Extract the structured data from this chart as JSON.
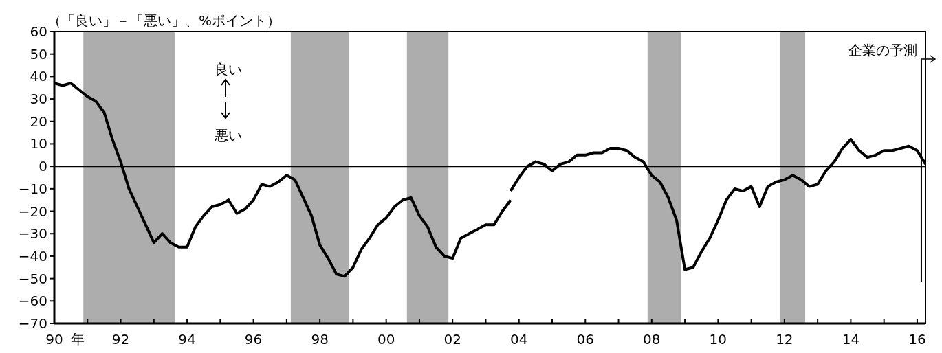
{
  "chart_data": {
    "type": "line",
    "ylabel": "（「良い」－「悪い」、%ポイント）",
    "annotations": [
      "良い",
      "悪い",
      "年"
    ],
    "series": [
      {
        "color": "#000000",
        "x": [
          1990,
          1990.25,
          1990.5,
          1990.75,
          1991,
          1991.25,
          1991.5,
          1991.75,
          1992,
          1992.25,
          1992.5,
          1992.75,
          1993,
          1993.25,
          1993.5,
          1993.75,
          1994,
          1994.25,
          1994.5,
          1994.75,
          1995,
          1995.25,
          1995.5,
          1995.75,
          1996,
          1996.25,
          1996.5,
          1996.75,
          1997,
          1997.25,
          1997.5,
          1997.75,
          1998,
          1998.25,
          1998.5,
          1998.75,
          1999,
          1999.25,
          1999.5,
          1999.75,
          2000,
          2000.25,
          2000.5,
          2000.75,
          2001,
          2001.25,
          2001.5,
          2001.75,
          2002,
          2002.25,
          2002.5,
          2002.75,
          2003,
          2003.25,
          2003.5,
          2003.75
        ],
        "values": [
          37,
          36,
          37,
          34,
          31,
          29,
          24,
          12,
          2,
          -10,
          -18,
          -26,
          -34,
          -30,
          -34,
          -36,
          -36,
          -27,
          -22,
          -18,
          -17,
          -15,
          -21,
          -19,
          -15,
          -8,
          -9,
          -7,
          -4,
          -6,
          -14,
          -22,
          -35,
          -41,
          -48,
          -49,
          -45,
          -37,
          -32,
          -26,
          -23,
          -18,
          -15,
          -14,
          -22,
          -27,
          -36,
          -40,
          -41,
          -32,
          -30,
          -28,
          -26,
          -26,
          -20,
          -15
        ]
      },
      {
        "color": "#000000",
        "x": [
          2003.75,
          2004,
          2004.25,
          2004.5,
          2004.75,
          2005,
          2005.25,
          2005.5,
          2005.75,
          2006,
          2006.25,
          2006.5,
          2006.75,
          2007,
          2007.25,
          2007.5,
          2007.75,
          2008,
          2008.25,
          2008.5,
          2008.75,
          2009,
          2009.25,
          2009.5,
          2009.75,
          2010,
          2010.25,
          2010.5,
          2010.75,
          2011,
          2011.25,
          2011.5,
          2011.75,
          2012,
          2012.25,
          2012.5,
          2012.75,
          2013,
          2013.25,
          2013.5,
          2013.75,
          2014,
          2014.25,
          2014.5,
          2014.75,
          2015,
          2015.25,
          2015.5,
          2015.75,
          2016,
          2016.25
        ],
        "values": [
          -11,
          -5,
          0,
          2,
          1,
          -2,
          1,
          2,
          5,
          5,
          6,
          6,
          8,
          8,
          7,
          4,
          2,
          -4,
          -7,
          -14,
          -24,
          -46,
          -45,
          -38,
          -32,
          -24,
          -15,
          -10,
          -11,
          -9,
          -18,
          -9,
          -7,
          -6,
          -4,
          -6,
          -9,
          -8,
          -2,
          2,
          8,
          12,
          7,
          4,
          5,
          7,
          7,
          8,
          9,
          7,
          1
        ]
      }
    ],
    "xlim": [
      1990,
      2016.25
    ],
    "xticks": [
      {
        "value": 1990,
        "label": "90"
      },
      {
        "value": 1991,
        "label": null
      },
      {
        "value": 1992,
        "label": "92"
      },
      {
        "value": 1993,
        "label": null
      },
      {
        "value": 1994,
        "label": "94"
      },
      {
        "value": 1995,
        "label": null
      },
      {
        "value": 1996,
        "label": "96"
      },
      {
        "value": 1997,
        "label": null
      },
      {
        "value": 1998,
        "label": "98"
      },
      {
        "value": 1999,
        "label": null
      },
      {
        "value": 2000,
        "label": "00"
      },
      {
        "value": 2001,
        "label": null
      },
      {
        "value": 2002,
        "label": "02"
      },
      {
        "value": 2003,
        "label": null
      },
      {
        "value": 2004,
        "label": "04"
      },
      {
        "value": 2005,
        "label": null
      },
      {
        "value": 2006,
        "label": "06"
      },
      {
        "value": 2007,
        "label": null
      },
      {
        "value": 2008,
        "label": "08"
      },
      {
        "value": 2009,
        "label": null
      },
      {
        "value": 2010,
        "label": "10"
      },
      {
        "value": 2011,
        "label": null
      },
      {
        "value": 2012,
        "label": "12"
      },
      {
        "value": 2013,
        "label": null
      },
      {
        "value": 2014,
        "label": "14"
      },
      {
        "value": 2015,
        "label": null
      },
      {
        "value": 2016,
        "label": "16"
      }
    ],
    "ylim": [
      -70,
      60
    ],
    "yticks": [
      -70,
      -60,
      -50,
      -40,
      -30,
      -20,
      -10,
      0,
      10,
      20,
      30,
      40,
      50,
      60
    ],
    "bands": [
      {
        "axis": "x",
        "from": 1990.875,
        "to": 1993.625,
        "color": "#adadad"
      },
      {
        "axis": "x",
        "from": 1997.125,
        "to": 1998.875,
        "color": "#adadad"
      },
      {
        "axis": "x",
        "from": 2000.625,
        "to": 2001.875,
        "color": "#adadad"
      },
      {
        "axis": "x",
        "from": 2007.875,
        "to": 2008.875,
        "color": "#adadad"
      },
      {
        "axis": "x",
        "from": 2011.875,
        "to": 2012.625,
        "color": "#adadad"
      }
    ],
    "ref_lines": [
      {
        "axis": "y",
        "value": 0,
        "color": "#000000"
      },
      {
        "axis": "x",
        "value": 2016.125,
        "label": "企業の予測",
        "color": "#000000"
      }
    ],
    "grid": false,
    "marker": "none",
    "line_style": "solid"
  }
}
